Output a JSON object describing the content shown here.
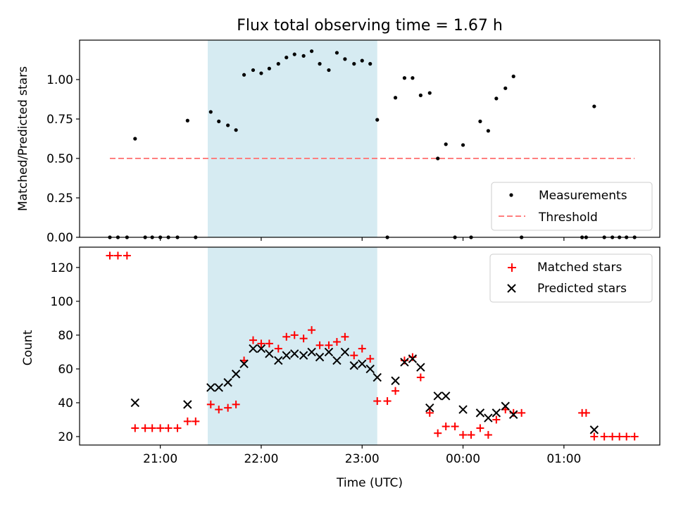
{
  "chart_data": [
    {
      "type": "scatter",
      "title": "Flux total observing time = 1.67 h",
      "ylabel": "Matched/Predicted stars",
      "xlabel": "",
      "x_unit": "hours since 20:00 UTC",
      "xlim": [
        0.2,
        5.95
      ],
      "ylim": [
        0,
        1.25
      ],
      "yticks": [
        {
          "value": 0,
          "label": "0.00"
        },
        {
          "value": 0.25,
          "label": "0.25"
        },
        {
          "value": 0.5,
          "label": "0.50"
        },
        {
          "value": 0.75,
          "label": "0.75"
        },
        {
          "value": 1.0,
          "label": "1.00"
        }
      ],
      "shaded_span": {
        "x0": 1.47,
        "x1": 3.15,
        "color": "#add8e6"
      },
      "threshold": {
        "label": "Threshold",
        "value": 0.5,
        "x0": 0.5,
        "x1": 5.7,
        "color": "#ff7f7f"
      },
      "series": [
        {
          "name": "Measurements",
          "color": "#000000",
          "points": [
            [
              0.5,
              0
            ],
            [
              0.58,
              0
            ],
            [
              0.67,
              0
            ],
            [
              0.75,
              0.625
            ],
            [
              0.85,
              0
            ],
            [
              0.92,
              0
            ],
            [
              1.0,
              0
            ],
            [
              1.08,
              0
            ],
            [
              1.17,
              0
            ],
            [
              1.27,
              0.74
            ],
            [
              1.35,
              0
            ],
            [
              1.5,
              0.795
            ],
            [
              1.58,
              0.735
            ],
            [
              1.67,
              0.71
            ],
            [
              1.75,
              0.68
            ],
            [
              1.83,
              1.03
            ],
            [
              1.92,
              1.06
            ],
            [
              2.0,
              1.04
            ],
            [
              2.08,
              1.07
            ],
            [
              2.17,
              1.1
            ],
            [
              2.25,
              1.14
            ],
            [
              2.33,
              1.16
            ],
            [
              2.42,
              1.15
            ],
            [
              2.5,
              1.18
            ],
            [
              2.58,
              1.1
            ],
            [
              2.67,
              1.06
            ],
            [
              2.75,
              1.17
            ],
            [
              2.83,
              1.13
            ],
            [
              2.92,
              1.1
            ],
            [
              3.0,
              1.12
            ],
            [
              3.08,
              1.1
            ],
            [
              3.15,
              0.745
            ],
            [
              3.25,
              0
            ],
            [
              3.33,
              0.885
            ],
            [
              3.42,
              1.01
            ],
            [
              3.5,
              1.01
            ],
            [
              3.58,
              0.9
            ],
            [
              3.67,
              0.915
            ],
            [
              3.75,
              0.5
            ],
            [
              3.83,
              0.59
            ],
            [
              3.92,
              0
            ],
            [
              4.0,
              0.585
            ],
            [
              4.08,
              0
            ],
            [
              4.17,
              0.735
            ],
            [
              4.25,
              0.675
            ],
            [
              4.33,
              0.88
            ],
            [
              4.42,
              0.945
            ],
            [
              4.5,
              1.02
            ],
            [
              4.58,
              0
            ],
            [
              5.18,
              0
            ],
            [
              5.22,
              0
            ],
            [
              5.3,
              0.83
            ],
            [
              5.4,
              0
            ],
            [
              5.48,
              0
            ],
            [
              5.55,
              0
            ],
            [
              5.62,
              0
            ],
            [
              5.7,
              0
            ]
          ]
        }
      ],
      "legend": {
        "position": "lower-right",
        "entries": [
          "Measurements",
          "Threshold"
        ]
      }
    },
    {
      "type": "scatter",
      "title": "",
      "ylabel": "Count",
      "xlabel": "Time (UTC)",
      "x_unit": "hours since 20:00 UTC",
      "xlim": [
        0.2,
        5.95
      ],
      "ylim": [
        15,
        132
      ],
      "yticks": [
        {
          "value": 20,
          "label": "20"
        },
        {
          "value": 40,
          "label": "40"
        },
        {
          "value": 60,
          "label": "60"
        },
        {
          "value": 80,
          "label": "80"
        },
        {
          "value": 100,
          "label": "100"
        },
        {
          "value": 120,
          "label": "120"
        }
      ],
      "xticks": [
        {
          "value": 1,
          "label": "21:00"
        },
        {
          "value": 2,
          "label": "22:00"
        },
        {
          "value": 3,
          "label": "23:00"
        },
        {
          "value": 4,
          "label": "00:00"
        },
        {
          "value": 5,
          "label": "01:00"
        }
      ],
      "shaded_span": {
        "x0": 1.47,
        "x1": 3.15,
        "color": "#add8e6"
      },
      "series": [
        {
          "name": "Matched stars",
          "marker": "+",
          "color": "#ff0000",
          "points": [
            [
              0.5,
              127
            ],
            [
              0.58,
              127
            ],
            [
              0.67,
              127
            ],
            [
              0.75,
              25
            ],
            [
              0.85,
              25
            ],
            [
              0.92,
              25
            ],
            [
              1.0,
              25
            ],
            [
              1.08,
              25
            ],
            [
              1.17,
              25
            ],
            [
              1.27,
              29
            ],
            [
              1.35,
              29
            ],
            [
              1.5,
              39
            ],
            [
              1.58,
              36
            ],
            [
              1.67,
              37
            ],
            [
              1.75,
              39
            ],
            [
              1.83,
              65
            ],
            [
              1.92,
              77
            ],
            [
              2.0,
              75
            ],
            [
              2.08,
              75
            ],
            [
              2.17,
              72
            ],
            [
              2.25,
              79
            ],
            [
              2.33,
              80
            ],
            [
              2.42,
              78
            ],
            [
              2.5,
              83
            ],
            [
              2.58,
              74
            ],
            [
              2.67,
              74
            ],
            [
              2.75,
              76
            ],
            [
              2.83,
              79
            ],
            [
              2.92,
              68
            ],
            [
              3.0,
              72
            ],
            [
              3.08,
              66
            ],
            [
              3.15,
              41
            ],
            [
              3.25,
              41
            ],
            [
              3.33,
              47
            ],
            [
              3.42,
              65
            ],
            [
              3.5,
              67
            ],
            [
              3.58,
              55
            ],
            [
              3.67,
              34
            ],
            [
              3.75,
              22
            ],
            [
              3.83,
              26
            ],
            [
              3.92,
              26
            ],
            [
              4.0,
              21
            ],
            [
              4.08,
              21
            ],
            [
              4.17,
              25
            ],
            [
              4.25,
              21
            ],
            [
              4.33,
              30
            ],
            [
              4.42,
              36
            ],
            [
              4.5,
              34
            ],
            [
              4.58,
              34
            ],
            [
              5.18,
              34
            ],
            [
              5.22,
              34
            ],
            [
              5.3,
              20
            ],
            [
              5.4,
              20
            ],
            [
              5.48,
              20
            ],
            [
              5.55,
              20
            ],
            [
              5.62,
              20
            ],
            [
              5.7,
              20
            ]
          ]
        },
        {
          "name": "Predicted stars",
          "marker": "x",
          "color": "#000000",
          "points": [
            [
              0.75,
              40
            ],
            [
              1.27,
              39
            ],
            [
              1.5,
              49
            ],
            [
              1.58,
              49
            ],
            [
              1.67,
              52
            ],
            [
              1.75,
              57
            ],
            [
              1.83,
              63
            ],
            [
              1.92,
              72
            ],
            [
              2.0,
              72
            ],
            [
              2.08,
              69
            ],
            [
              2.17,
              65
            ],
            [
              2.25,
              68
            ],
            [
              2.33,
              69
            ],
            [
              2.42,
              68
            ],
            [
              2.5,
              70
            ],
            [
              2.58,
              67
            ],
            [
              2.67,
              70
            ],
            [
              2.75,
              65
            ],
            [
              2.83,
              70
            ],
            [
              2.92,
              62
            ],
            [
              3.0,
              63
            ],
            [
              3.08,
              60
            ],
            [
              3.15,
              55
            ],
            [
              3.33,
              53
            ],
            [
              3.42,
              64
            ],
            [
              3.5,
              66
            ],
            [
              3.58,
              61
            ],
            [
              3.67,
              37
            ],
            [
              3.75,
              44
            ],
            [
              3.83,
              44
            ],
            [
              4.0,
              36
            ],
            [
              4.17,
              34
            ],
            [
              4.25,
              31
            ],
            [
              4.33,
              34
            ],
            [
              4.42,
              38
            ],
            [
              4.5,
              33
            ],
            [
              5.3,
              24
            ]
          ]
        }
      ],
      "legend": {
        "position": "upper-right",
        "entries": [
          "Matched stars",
          "Predicted stars"
        ]
      }
    }
  ]
}
